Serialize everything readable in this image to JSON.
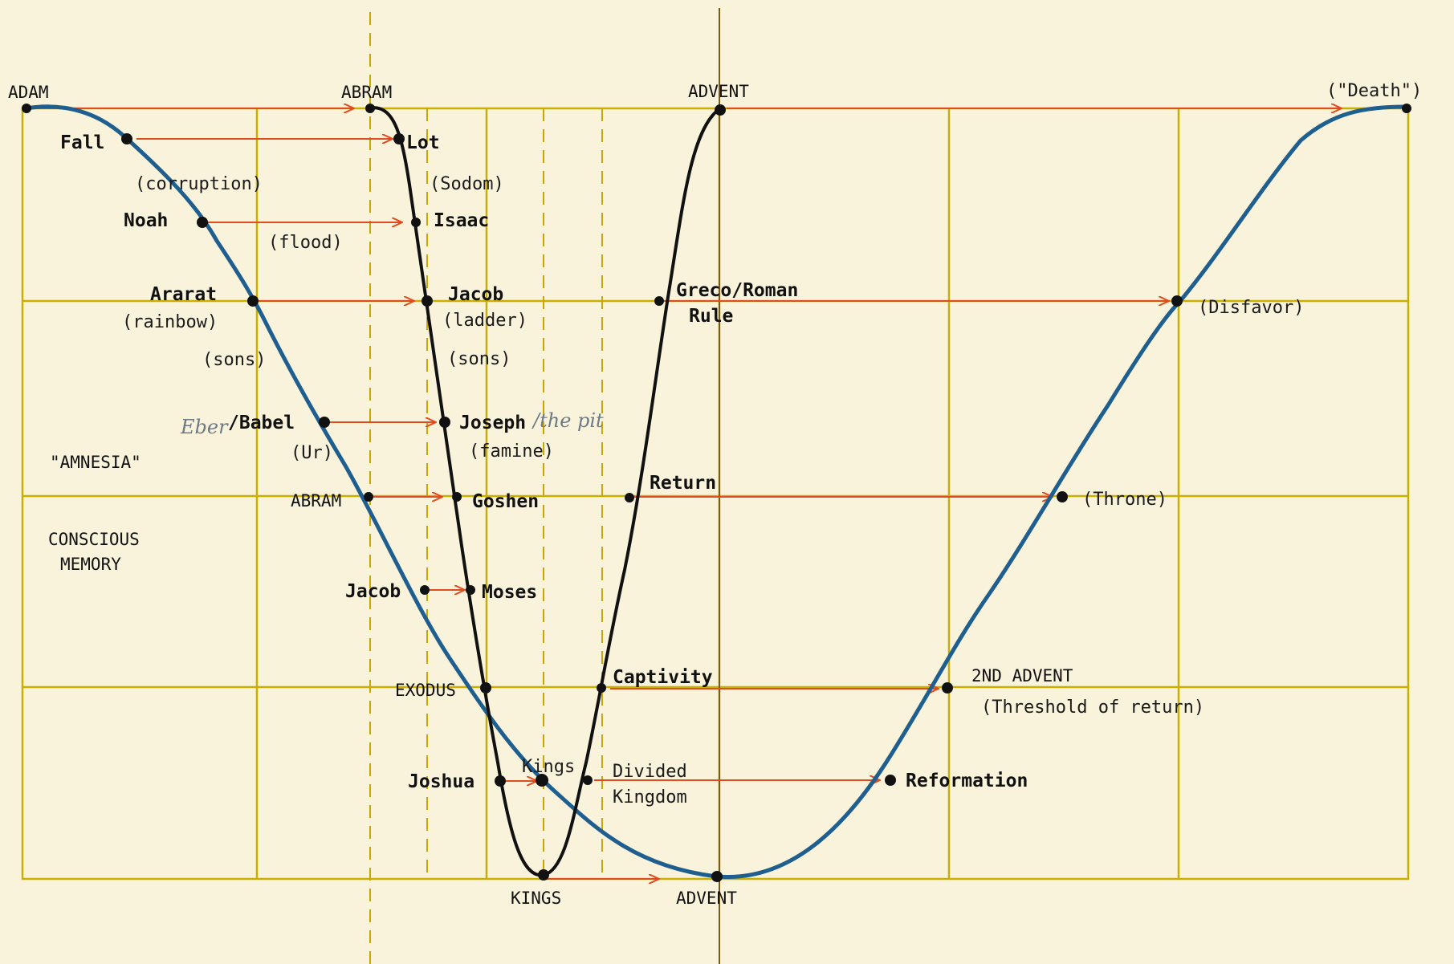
{
  "diagram": {
    "colors": {
      "background": "#faf3dc",
      "grid": "#c9b000",
      "blue_curve": "#1f5f8f",
      "black_curve": "#111111",
      "arrow": "#e04b1f",
      "handwriting": "#6c7a86"
    },
    "labels": {
      "adam": "ADAM",
      "abram_top": "ABRAM",
      "advent_top": "ADVENT",
      "death": "(\"Death\")",
      "fall": "Fall",
      "corruption": "(corruption)",
      "noah": "Noah",
      "flood": "(flood)",
      "ararat": "Ararat",
      "rainbow": "(rainbow)",
      "sons_1": "(sons)",
      "eber": "Eber",
      "babel": "/Babel",
      "ur": "(Ur)",
      "amnesia": "\"AMNESIA\"",
      "abram_mid": "ABRAM",
      "conscious": "CONSCIOUS",
      "memory": "MEMORY",
      "jacob_blue": "Jacob",
      "exodus": "EXODUS",
      "joshua": "Joshua",
      "lot": "Lot",
      "sodom": "(Sodom)",
      "isaac": "Isaac",
      "jacob_black": "Jacob",
      "ladder": "(ladder)",
      "sons_2": "(sons)",
      "joseph": "Joseph",
      "the_pit": "/the pit",
      "famine": "(famine)",
      "goshen": "Goshen",
      "moses": "Moses",
      "kings_small": "Kings",
      "kings_bottom": "KINGS",
      "advent_bottom": "ADVENT",
      "greco_roman": "Greco/Roman",
      "rule": "Rule",
      "disfavor": "(Disfavor)",
      "return_lbl": "Return",
      "throne": "(Throne)",
      "captivity": "Captivity",
      "second_advent": "2ND ADVENT",
      "threshold": "(Threshold of return)",
      "divided": "Divided",
      "kingdom": "Kingdom",
      "reformation": "Reformation"
    }
  }
}
